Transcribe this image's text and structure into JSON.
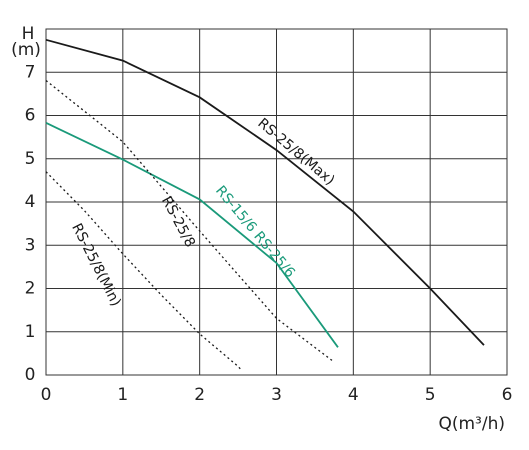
{
  "chart_data": {
    "type": "line",
    "ylabel": [
      "H",
      "(m)"
    ],
    "xlabel": "Q(m³/h)",
    "xlim": [
      0,
      6
    ],
    "xticks": [
      0,
      1,
      2,
      3,
      4,
      5,
      6
    ],
    "ylim": [
      0,
      8
    ],
    "yticks": [
      0,
      1,
      2,
      3,
      4,
      5,
      6,
      7
    ],
    "grid": true,
    "series": [
      {
        "name": "RS-25/8(Max)",
        "color": "#1a1a1a",
        "style": "solid",
        "x": [
          0,
          1,
          2,
          3,
          4,
          5,
          5.7
        ],
        "values": [
          7.75,
          7.27,
          6.42,
          5.2,
          3.78,
          2.0,
          0.69
        ]
      },
      {
        "name": "RS-15/6 RS-25/6",
        "color": "#1a9a7a",
        "style": "solid",
        "x": [
          0,
          1,
          2,
          3,
          3.8
        ],
        "values": [
          5.83,
          4.98,
          4.06,
          2.59,
          0.64
        ]
      },
      {
        "name": "RS-25/8",
        "color": "#1a1a1a",
        "style": "dotted",
        "x": [
          0,
          1,
          2,
          3,
          3.75
        ],
        "values": [
          6.81,
          5.39,
          3.33,
          1.31,
          0.3
        ]
      },
      {
        "name": "RS-25/8(Min)",
        "color": "#1a1a1a",
        "style": "dotted",
        "x": [
          0,
          0.5,
          1,
          1.5,
          2,
          2.5,
          2.55
        ],
        "values": [
          4.7,
          3.8,
          2.8,
          1.85,
          0.95,
          0.2,
          0.1
        ]
      }
    ]
  }
}
